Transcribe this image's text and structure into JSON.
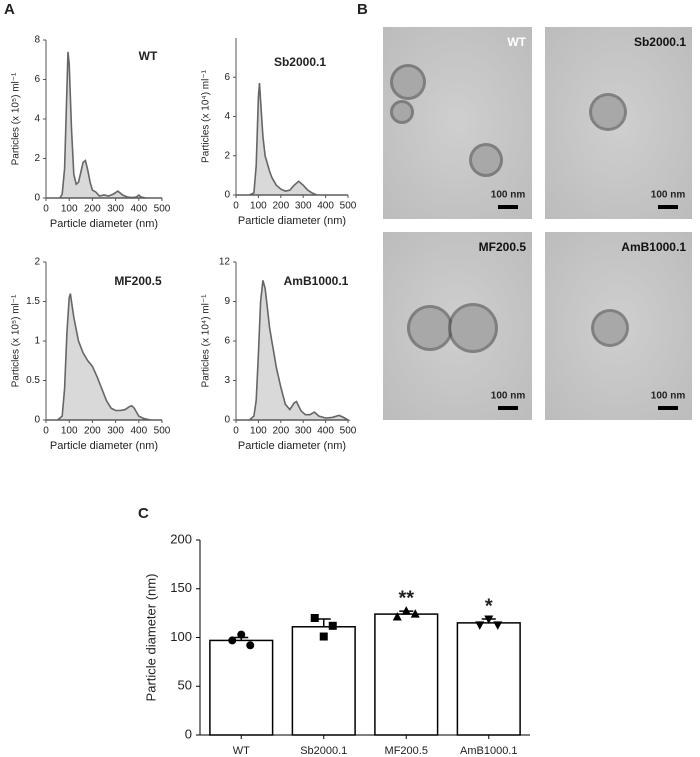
{
  "panels": [
    "A",
    "B",
    "C"
  ],
  "micrographs": [
    {
      "label": "WT",
      "scale": "100 nm"
    },
    {
      "label": "Sb2000.1",
      "scale": "100 nm"
    },
    {
      "label": "MF200.5",
      "scale": "100 nm"
    },
    {
      "label": "AmB1000.1",
      "scale": "100 nm"
    }
  ],
  "chart_data": [
    {
      "type": "area",
      "label": "WT",
      "x_label": "Particle diameter (nm)",
      "y_label": "Particles (x 10⁵) ml⁻¹",
      "color": "#666666",
      "fill": "#d9d9d9",
      "x": [
        0,
        40,
        60,
        70,
        80,
        90,
        95,
        100,
        110,
        120,
        130,
        140,
        150,
        160,
        170,
        180,
        190,
        200,
        215,
        230,
        250,
        270,
        290,
        310,
        330,
        350,
        370,
        390,
        400,
        410,
        430,
        460,
        500
      ],
      "values": [
        0,
        0,
        0,
        0.2,
        1.5,
        5.5,
        7.4,
        6.8,
        3.5,
        1.2,
        0.7,
        0.8,
        1.3,
        1.8,
        1.9,
        1.4,
        0.8,
        0.4,
        0.3,
        0.1,
        0.15,
        0.1,
        0.2,
        0.35,
        0.15,
        0.05,
        0.02,
        0.05,
        0.15,
        0.05,
        0,
        0,
        0
      ],
      "xlim": [
        0,
        500
      ],
      "xticks": [
        0,
        100,
        200,
        300,
        400,
        500
      ],
      "ylim": [
        0,
        8
      ],
      "yticks": [
        0,
        2,
        4,
        6,
        8
      ]
    },
    {
      "type": "area",
      "label": "Sb2000.1",
      "x_label": "Particle diameter (nm)",
      "y_label": "Particles (x 10⁴) ml⁻¹",
      "color": "#666666",
      "fill": "#d9d9d9",
      "x": [
        0,
        60,
        80,
        90,
        100,
        105,
        110,
        120,
        130,
        140,
        150,
        160,
        170,
        180,
        200,
        220,
        240,
        260,
        280,
        300,
        320,
        340,
        360,
        400,
        450,
        500
      ],
      "values": [
        0,
        0,
        0.1,
        1.5,
        5,
        5.7,
        4.8,
        3,
        2,
        1.6,
        1.2,
        0.9,
        0.7,
        0.5,
        0.3,
        0.2,
        0.25,
        0.5,
        0.7,
        0.5,
        0.25,
        0.1,
        0,
        0,
        0,
        0
      ],
      "xlim": [
        0,
        500
      ],
      "xticks": [
        0,
        100,
        200,
        300,
        400,
        500
      ],
      "ylim": [
        0,
        8
      ],
      "yticks": [
        0,
        2,
        4,
        6
      ]
    },
    {
      "type": "area",
      "label": "MF200.5",
      "x_label": "Particle diameter (nm)",
      "y_label": "Particles (x 10⁵) ml⁻¹",
      "color": "#666666",
      "fill": "#d9d9d9",
      "x": [
        0,
        50,
        70,
        80,
        90,
        100,
        105,
        110,
        120,
        140,
        160,
        180,
        200,
        220,
        240,
        260,
        280,
        300,
        320,
        340,
        360,
        370,
        380,
        400,
        420,
        450,
        500
      ],
      "values": [
        0,
        0,
        0.05,
        0.4,
        1.1,
        1.55,
        1.6,
        1.5,
        1.3,
        1.0,
        0.85,
        0.75,
        0.68,
        0.55,
        0.4,
        0.25,
        0.15,
        0.12,
        0.12,
        0.13,
        0.17,
        0.18,
        0.15,
        0.05,
        0.02,
        0,
        0
      ],
      "xlim": [
        0,
        500
      ],
      "xticks": [
        0,
        100,
        200,
        300,
        400,
        500
      ],
      "ylim": [
        0,
        2
      ],
      "yticks": [
        0,
        0.5,
        1,
        1.5,
        2
      ]
    },
    {
      "type": "area",
      "label": "AmB1000.1",
      "x_label": "Particle diameter (nm)",
      "y_label": "Particles (x 10⁴) ml⁻¹",
      "color": "#666666",
      "fill": "#d9d9d9",
      "x": [
        0,
        60,
        80,
        90,
        100,
        110,
        120,
        130,
        140,
        150,
        160,
        170,
        180,
        200,
        220,
        240,
        260,
        270,
        290,
        310,
        330,
        350,
        370,
        400,
        430,
        460,
        480,
        500
      ],
      "values": [
        0,
        0,
        0.3,
        1.5,
        5,
        9,
        10.6,
        10,
        8.5,
        7,
        6,
        5,
        4,
        2.5,
        1.2,
        0.8,
        1.3,
        1.4,
        0.7,
        0.4,
        0.4,
        0.6,
        0.3,
        0.15,
        0.2,
        0.35,
        0.2,
        0
      ],
      "xlim": [
        0,
        500
      ],
      "xticks": [
        0,
        100,
        200,
        300,
        400,
        500
      ],
      "ylim": [
        0,
        12
      ],
      "yticks": [
        0,
        3,
        6,
        9,
        12
      ]
    },
    {
      "type": "bar",
      "y_label": "Particle diameter (nm)",
      "color": "#ffffff",
      "categories": [
        "WT",
        "Sb2000.1",
        "MF200.5",
        "AmB1000.1"
      ],
      "values": [
        97,
        111,
        124,
        115
      ],
      "errors": [
        3,
        8,
        3,
        4
      ],
      "points": [
        [
          97,
          103,
          92
        ],
        [
          120,
          101,
          112
        ],
        [
          121,
          127,
          124
        ],
        [
          113,
          119,
          113
        ]
      ],
      "markers": [
        "circle",
        "square",
        "triangle-up",
        "triangle-down"
      ],
      "annotations": [
        null,
        null,
        "**",
        "*"
      ],
      "ylim": [
        0,
        200
      ],
      "yticks": [
        0,
        50,
        100,
        150,
        200
      ]
    }
  ]
}
